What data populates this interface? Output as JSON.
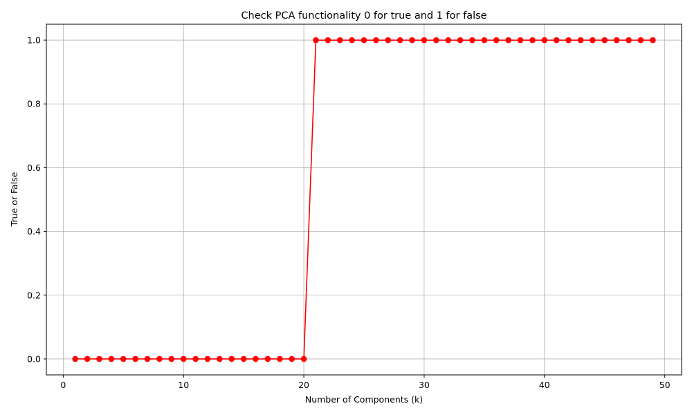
{
  "chart_data": {
    "type": "line",
    "title": "Check PCA functionality 0 for true and 1 for false",
    "xlabel": "Number of Components (k)",
    "ylabel": "True or False",
    "xlim": [
      -1.4,
      51.4
    ],
    "ylim": [
      -0.05,
      1.05
    ],
    "xticks": [
      0,
      10,
      20,
      30,
      40,
      50
    ],
    "xtick_labels": [
      "0",
      "10",
      "20",
      "30",
      "40",
      "50"
    ],
    "yticks": [
      0.0,
      0.2,
      0.4,
      0.6,
      0.8,
      1.0
    ],
    "ytick_labels": [
      "0.0",
      "0.2",
      "0.4",
      "0.6",
      "0.8",
      "1.0"
    ],
    "grid": true,
    "series": [
      {
        "color": "#ff0000",
        "marker": "circle",
        "x": [
          1,
          2,
          3,
          4,
          5,
          6,
          7,
          8,
          9,
          10,
          11,
          12,
          13,
          14,
          15,
          16,
          17,
          18,
          19,
          20,
          21,
          22,
          23,
          24,
          25,
          26,
          27,
          28,
          29,
          30,
          31,
          32,
          33,
          34,
          35,
          36,
          37,
          38,
          39,
          40,
          41,
          42,
          43,
          44,
          45,
          46,
          47,
          48,
          49
        ],
        "y": [
          0,
          0,
          0,
          0,
          0,
          0,
          0,
          0,
          0,
          0,
          0,
          0,
          0,
          0,
          0,
          0,
          0,
          0,
          0,
          0,
          1,
          1,
          1,
          1,
          1,
          1,
          1,
          1,
          1,
          1,
          1,
          1,
          1,
          1,
          1,
          1,
          1,
          1,
          1,
          1,
          1,
          1,
          1,
          1,
          1,
          1,
          1,
          1,
          1
        ]
      }
    ]
  }
}
